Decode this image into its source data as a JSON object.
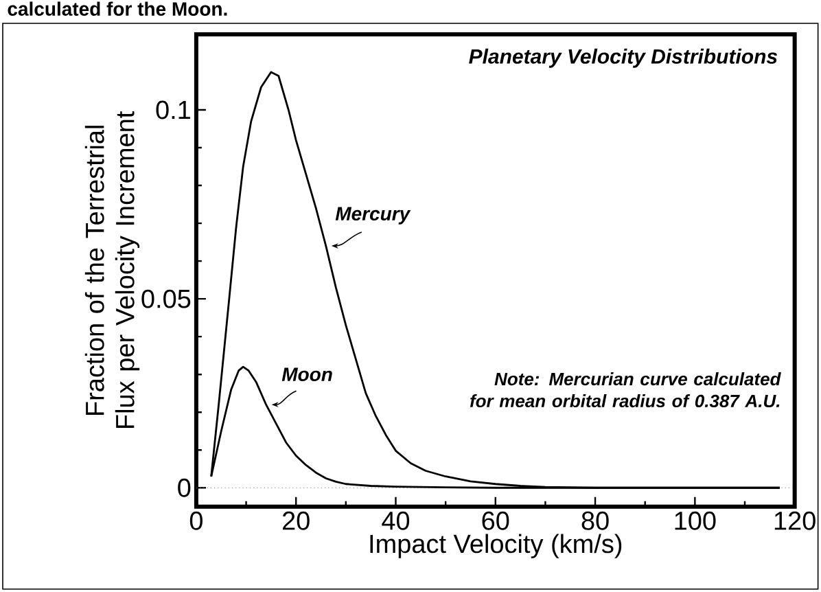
{
  "chart_data": {
    "type": "line",
    "title": "Planetary Velocity Distributions",
    "xlabel": "Impact Velocity (km/s)",
    "ylabel": "Fraction of the Terrestrial Flux per Velocity Increment",
    "xlim": [
      0,
      120
    ],
    "ylim": [
      -0.005,
      0.12
    ],
    "xticks": [
      0,
      20,
      40,
      60,
      80,
      100,
      120
    ],
    "yticks": [
      0,
      0.05,
      0.1
    ],
    "series": [
      {
        "name": "Mercury",
        "color": "#000000",
        "x": [
          3,
          4.5,
          6.6,
          8,
          9.4,
          11,
          13,
          15,
          16.5,
          18.5,
          20,
          22,
          24,
          26,
          28,
          30,
          32,
          34,
          36,
          38,
          40,
          43,
          46,
          50,
          55,
          60,
          65,
          70,
          80,
          100,
          117
        ],
        "values": [
          0.003,
          0.022,
          0.05,
          0.069,
          0.085,
          0.097,
          0.106,
          0.11,
          0.109,
          0.1,
          0.092,
          0.083,
          0.074,
          0.064,
          0.053,
          0.043,
          0.034,
          0.025,
          0.019,
          0.014,
          0.0098,
          0.0065,
          0.0045,
          0.003,
          0.0017,
          0.001,
          0.0005,
          0.0002,
          0,
          0,
          0
        ]
      },
      {
        "name": "Moon",
        "color": "#000000",
        "x": [
          3,
          5,
          7,
          8.5,
          9.4,
          10.5,
          12,
          14,
          16,
          18,
          20,
          22,
          24,
          26,
          28,
          30,
          35,
          40,
          50,
          60,
          80,
          117
        ],
        "values": [
          0.003,
          0.015,
          0.026,
          0.031,
          0.032,
          0.031,
          0.028,
          0.022,
          0.017,
          0.012,
          0.0085,
          0.006,
          0.004,
          0.0025,
          0.0016,
          0.001,
          0.0005,
          0.0003,
          0.0001,
          0,
          0,
          0
        ]
      }
    ],
    "ref_lines": [
      {
        "axis": "y",
        "value": 0,
        "line_style": "dotted",
        "color": "#808080"
      }
    ],
    "annotations": [
      "Note: Mercurian curve calculated for mean orbital radius of 0.387 A.U.",
      "calculated for the Moon."
    ],
    "legend": false,
    "grid": false,
    "marker": "none",
    "line_style": "solid"
  }
}
